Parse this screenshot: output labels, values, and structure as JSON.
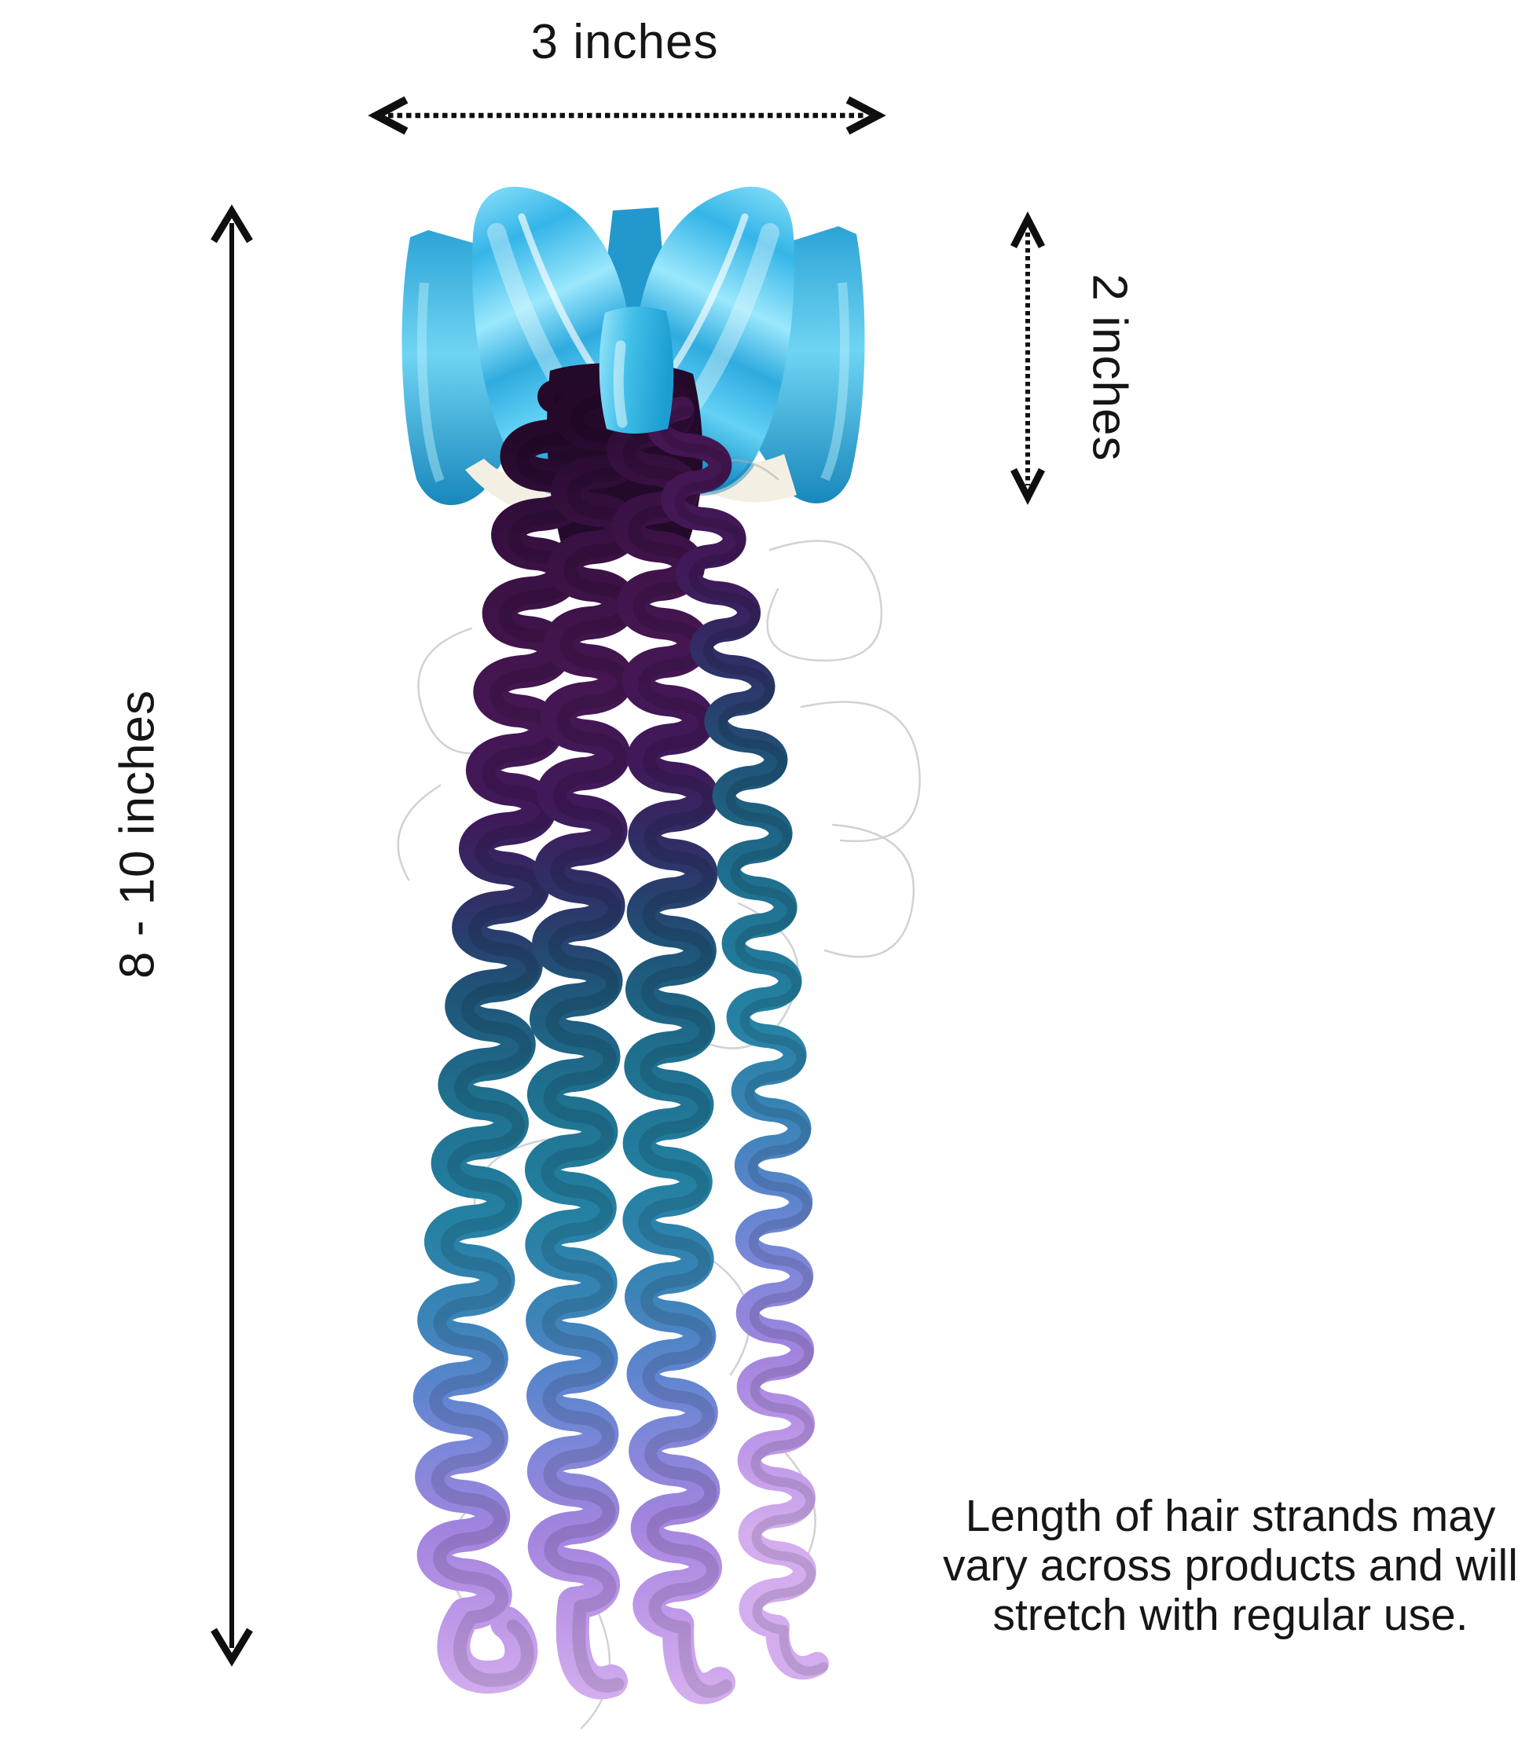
{
  "figure": {
    "subject": "holographic bow hair clip with ombre curly hair strands",
    "bow_color": "#41c3ee",
    "bow_backing_color": "#f4efe3",
    "hair_ombre_colors": [
      "#371040",
      "#1f6f8e",
      "#5f85cf",
      "#a284de",
      "#d3adee"
    ],
    "arrow_color": "#0f0f0f"
  },
  "annotations": {
    "width_label": "3 inches",
    "height_label": "2 inches",
    "length_label": "8 - 10 inches",
    "note_lines": [
      "Length of hair strands may",
      "vary across products and will",
      "stretch with regular use."
    ]
  }
}
